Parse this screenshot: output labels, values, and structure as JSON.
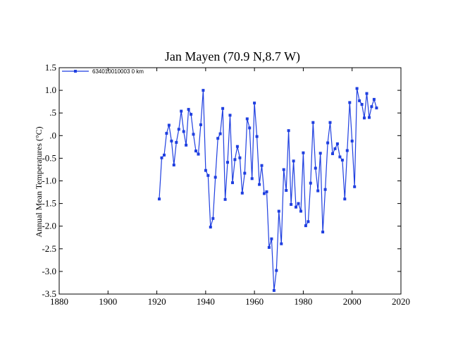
{
  "chart_data": {
    "type": "line",
    "title": "Jan Mayen (70.9 N,8.7 W)",
    "xlabel": "",
    "ylabel": "Annual Mean Temperatures (°C)",
    "xlim": [
      1880,
      2020
    ],
    "ylim": [
      -3.5,
      1.5
    ],
    "x_ticks": [
      1880,
      1900,
      1920,
      1940,
      1960,
      1980,
      2000,
      2020
    ],
    "y_ticks": [
      -3.5,
      -3.0,
      -2.5,
      -2.0,
      -1.5,
      -1.0,
      -0.5,
      0.0,
      0.5,
      1.0,
      1.5
    ],
    "x_tick_labels": [
      "1880",
      "1900",
      "1920",
      "1940",
      "1960",
      "1980",
      "2000",
      "2020"
    ],
    "y_tick_labels": [
      "-3.5",
      "-3.0",
      "-2.5",
      "-2.0",
      "-1.5",
      "-1.0",
      "-0.5",
      ".0",
      ".5",
      "1.0",
      "1.5"
    ],
    "grid": false,
    "legend_position": "top-left",
    "color": "#1f3fe0",
    "series": [
      {
        "name": "634010010003  0 km",
        "x": [
          1921,
          1922,
          1923,
          1924,
          1925,
          1926,
          1927,
          1928,
          1929,
          1930,
          1931,
          1932,
          1933,
          1934,
          1935,
          1936,
          1937,
          1938,
          1939,
          1940,
          1941,
          1942,
          1943,
          1944,
          1945,
          1946,
          1947,
          1948,
          1949,
          1950,
          1951,
          1952,
          1953,
          1954,
          1955,
          1956,
          1957,
          1958,
          1959,
          1960,
          1961,
          1962,
          1963,
          1964,
          1965,
          1966,
          1967,
          1968,
          1969,
          1970,
          1971,
          1972,
          1973,
          1974,
          1975,
          1976,
          1977,
          1978,
          1979,
          1980,
          1981,
          1982,
          1983,
          1984,
          1985,
          1986,
          1987,
          1988,
          1989,
          1990,
          1991,
          1992,
          1993,
          1994,
          1995,
          1996,
          1997,
          1998,
          1999,
          2000,
          2001,
          2002,
          2003,
          2004,
          2005,
          2006,
          2007,
          2008,
          2009,
          2010
        ],
        "y": [
          -1.4,
          -0.49,
          -0.43,
          0.05,
          0.23,
          -0.12,
          -0.65,
          -0.15,
          0.14,
          0.54,
          0.09,
          -0.21,
          0.58,
          0.47,
          0.03,
          -0.34,
          -0.41,
          0.24,
          1.0,
          -0.77,
          -0.88,
          -2.02,
          -1.83,
          -0.92,
          -0.06,
          0.04,
          0.6,
          -1.41,
          -0.59,
          0.45,
          -1.04,
          -0.53,
          -0.24,
          -0.49,
          -1.27,
          -0.83,
          0.37,
          0.17,
          -0.95,
          0.72,
          -0.02,
          -1.08,
          -0.66,
          -1.28,
          -1.24,
          -2.47,
          -2.28,
          -3.42,
          -2.98,
          -1.67,
          -2.39,
          -0.75,
          -1.21,
          0.11,
          -1.52,
          -0.56,
          -1.58,
          -1.5,
          -1.67,
          -0.38,
          -1.99,
          -1.9,
          -1.05,
          0.29,
          -0.72,
          -1.22,
          -0.39,
          -2.13,
          -1.19,
          -0.16,
          0.29,
          -0.4,
          -0.29,
          -0.18,
          -0.47,
          -0.54,
          -1.4,
          -0.33,
          0.73,
          -0.12,
          -1.13,
          1.04,
          0.77,
          0.69,
          0.39,
          0.93,
          0.4,
          0.64,
          0.8,
          0.61
        ]
      }
    ]
  }
}
